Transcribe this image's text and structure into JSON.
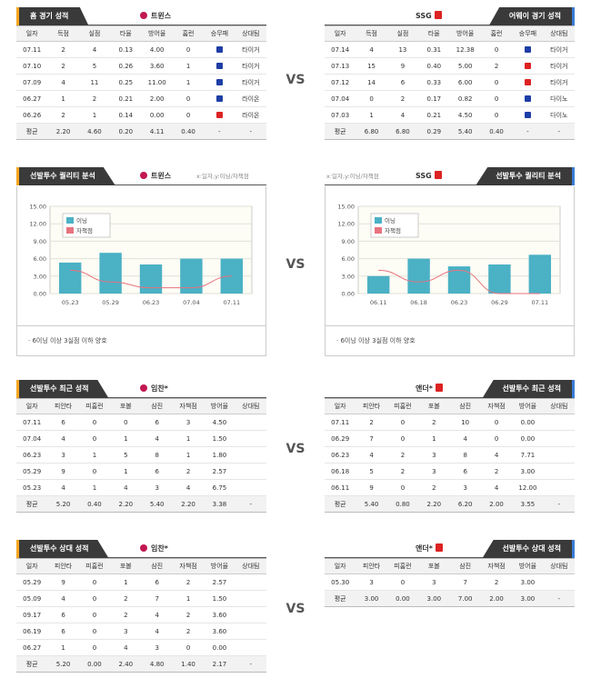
{
  "vs": "VS",
  "record": {
    "left": {
      "title": "홈 경기 성적",
      "team": "트윈스",
      "headers": [
        "일자",
        "득점",
        "실점",
        "타율",
        "방어율",
        "홈런",
        "승무패",
        "상대팀"
      ],
      "rows": [
        {
          "cells": [
            "07.11",
            "2",
            "4",
            "0.13",
            "4.00",
            "0"
          ],
          "res": "패",
          "opp": "타이거"
        },
        {
          "cells": [
            "07.10",
            "2",
            "5",
            "0.26",
            "3.60",
            "1"
          ],
          "res": "패",
          "opp": "타이거"
        },
        {
          "cells": [
            "07.09",
            "4",
            "11",
            "0.25",
            "11.00",
            "1"
          ],
          "res": "패",
          "opp": "타이거"
        },
        {
          "cells": [
            "06.27",
            "1",
            "2",
            "0.21",
            "2.00",
            "0"
          ],
          "res": "패",
          "opp": "라이온"
        },
        {
          "cells": [
            "06.26",
            "2",
            "1",
            "0.14",
            "0.00",
            "0"
          ],
          "res": "승",
          "opp": "라이온"
        }
      ],
      "avg": [
        "평균",
        "2.20",
        "4.60",
        "0.20",
        "4.11",
        "0.40",
        "-",
        "-"
      ]
    },
    "right": {
      "title": "어웨이 경기 성적",
      "team": "SSG",
      "headers": [
        "일자",
        "득점",
        "실점",
        "타율",
        "방어율",
        "홈런",
        "승무패",
        "상대팀"
      ],
      "rows": [
        {
          "cells": [
            "07.14",
            "4",
            "13",
            "0.31",
            "12.38",
            "0"
          ],
          "res": "패",
          "opp": "타이거"
        },
        {
          "cells": [
            "07.13",
            "15",
            "9",
            "0.40",
            "5.00",
            "2"
          ],
          "res": "승",
          "opp": "타이거"
        },
        {
          "cells": [
            "07.12",
            "14",
            "6",
            "0.33",
            "6.00",
            "0"
          ],
          "res": "승",
          "opp": "타이거"
        },
        {
          "cells": [
            "07.04",
            "0",
            "2",
            "0.17",
            "0.82",
            "0"
          ],
          "res": "패",
          "opp": "다이노"
        },
        {
          "cells": [
            "07.03",
            "1",
            "4",
            "0.21",
            "4.50",
            "0"
          ],
          "res": "패",
          "opp": "다이노"
        }
      ],
      "avg": [
        "평균",
        "6.80",
        "6.80",
        "0.29",
        "5.40",
        "0.40",
        "-",
        "-"
      ]
    }
  },
  "quality": {
    "left": {
      "title": "선발투수 퀄리티 분석",
      "team": "트윈스",
      "axis_note": "x:일자,y:이닝/자책점",
      "note": "· 6이닝 이상 3실점 이하 양호"
    },
    "right": {
      "title": "선발투수 퀄리티 분석",
      "team": "SSG",
      "axis_note": "x:일자,y:이닝/자책점",
      "note": "· 6이닝 이상 3실점 이하 양호"
    }
  },
  "chart_data": [
    {
      "type": "bar",
      "categories": [
        "05.23",
        "05.29",
        "06.23",
        "07.04",
        "07.11"
      ],
      "series": [
        {
          "name": "이닝",
          "values": [
            5.33,
            7.0,
            5.0,
            6.0,
            6.0
          ]
        },
        {
          "name": "자책점",
          "values": [
            4,
            2,
            1,
            1,
            3
          ]
        }
      ],
      "yticks": [
        "0.00",
        "3.00",
        "6.00",
        "9.00",
        "12.00",
        "15.00"
      ],
      "ylim": [
        0,
        15
      ]
    },
    {
      "type": "bar",
      "categories": [
        "06.11",
        "06.18",
        "06.23",
        "06.29",
        "07.11"
      ],
      "series": [
        {
          "name": "이닝",
          "values": [
            3.0,
            6.0,
            4.67,
            5.0,
            6.67
          ]
        },
        {
          "name": "자책점",
          "values": [
            4,
            2,
            4,
            0,
            0
          ]
        }
      ],
      "yticks": [
        "0.00",
        "3.00",
        "6.00",
        "9.00",
        "12.00",
        "15.00"
      ],
      "ylim": [
        0,
        15
      ]
    }
  ],
  "recent": {
    "left": {
      "title": "선발투수 최근 성적",
      "pitcher": "임찬*",
      "headers": [
        "일자",
        "피안타",
        "피홈런",
        "포볼",
        "삼진",
        "자책점",
        "방어율",
        "상대팀"
      ],
      "rows": [
        [
          "07.11",
          "6",
          "0",
          "0",
          "6",
          "3",
          "4.50",
          ""
        ],
        [
          "07.04",
          "4",
          "0",
          "1",
          "4",
          "1",
          "1.50",
          ""
        ],
        [
          "06.23",
          "3",
          "1",
          "5",
          "8",
          "1",
          "1.80",
          ""
        ],
        [
          "05.29",
          "9",
          "0",
          "1",
          "6",
          "2",
          "2.57",
          ""
        ],
        [
          "05.23",
          "4",
          "1",
          "4",
          "3",
          "4",
          "6.75",
          ""
        ]
      ],
      "avg": [
        "평균",
        "5.20",
        "0.40",
        "2.20",
        "5.40",
        "2.20",
        "3.38",
        "-"
      ]
    },
    "right": {
      "title": "선발투수 최근 성적",
      "pitcher": "앤더*",
      "headers": [
        "일자",
        "피안타",
        "피홈런",
        "포볼",
        "삼진",
        "자책점",
        "방어율",
        "상대팀"
      ],
      "rows": [
        [
          "07.11",
          "2",
          "0",
          "2",
          "10",
          "0",
          "0.00",
          ""
        ],
        [
          "06.29",
          "7",
          "0",
          "1",
          "4",
          "0",
          "0.00",
          ""
        ],
        [
          "06.23",
          "4",
          "2",
          "3",
          "8",
          "4",
          "7.71",
          ""
        ],
        [
          "06.18",
          "5",
          "2",
          "3",
          "6",
          "2",
          "3.00",
          ""
        ],
        [
          "06.11",
          "9",
          "0",
          "2",
          "3",
          "4",
          "12.00",
          ""
        ]
      ],
      "avg": [
        "평균",
        "5.40",
        "0.80",
        "2.20",
        "6.20",
        "2.00",
        "3.55",
        "-"
      ]
    }
  },
  "versus": {
    "left": {
      "title": "선발투수 상대 성적",
      "pitcher": "임찬*",
      "headers": [
        "일자",
        "피안타",
        "피홈런",
        "포볼",
        "삼진",
        "자책점",
        "방어율",
        "상대팀"
      ],
      "rows": [
        [
          "05.29",
          "9",
          "0",
          "1",
          "6",
          "2",
          "2.57",
          ""
        ],
        [
          "05.09",
          "4",
          "0",
          "2",
          "7",
          "1",
          "1.50",
          ""
        ],
        [
          "09.17",
          "6",
          "0",
          "2",
          "4",
          "2",
          "3.60",
          ""
        ],
        [
          "06.19",
          "6",
          "0",
          "3",
          "4",
          "2",
          "3.60",
          ""
        ],
        [
          "06.27",
          "1",
          "0",
          "4",
          "3",
          "0",
          "0.00",
          ""
        ]
      ],
      "avg": [
        "평균",
        "5.20",
        "0.00",
        "2.40",
        "4.80",
        "1.40",
        "2.17",
        "-"
      ]
    },
    "right": {
      "title": "선발투수 상대 성적",
      "pitcher": "앤더*",
      "headers": [
        "일자",
        "피안타",
        "피홈런",
        "포볼",
        "삼진",
        "자책점",
        "방어율",
        "상대팀"
      ],
      "rows": [
        [
          "05.30",
          "3",
          "0",
          "3",
          "7",
          "2",
          "3.00",
          ""
        ]
      ],
      "avg": [
        "평균",
        "3.00",
        "0.00",
        "3.00",
        "7.00",
        "2.00",
        "3.00",
        "-"
      ]
    }
  },
  "colors": {
    "bar": "#4bb1c5",
    "line": "#e8737e",
    "dark": "#3a3a3a",
    "accentLeft": "#f5a623",
    "accentRight": "#3a7bd5"
  }
}
